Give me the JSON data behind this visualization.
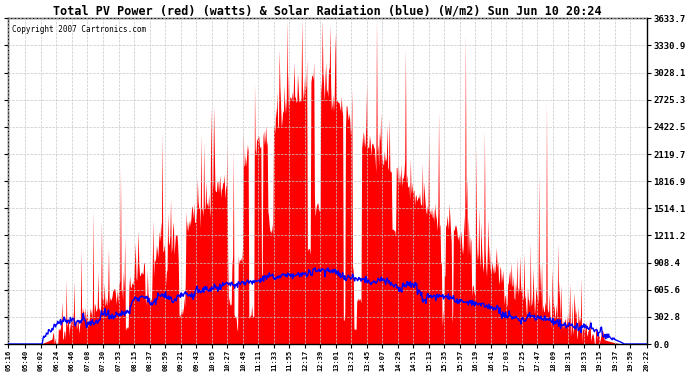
{
  "title": "Total PV Power (red) (watts) & Solar Radiation (blue) (W/m2) Sun Jun 10 20:24",
  "copyright": "Copyright 2007 Cartronics.com",
  "bg_color": "#ffffff",
  "plot_bg_color": "#ffffff",
  "grid_color": "#c8c8c8",
  "pv_color": "#ff0000",
  "solar_color": "#0000ff",
  "yticks": [
    0.0,
    302.8,
    605.6,
    908.4,
    1211.2,
    1514.1,
    1816.9,
    2119.7,
    2422.5,
    2725.3,
    3028.1,
    3330.9,
    3633.7
  ],
  "ymax": 3633.7,
  "ymin": 0.0,
  "xtick_labels": [
    "05:16",
    "05:40",
    "06:02",
    "06:24",
    "06:46",
    "07:08",
    "07:30",
    "07:53",
    "08:15",
    "08:37",
    "08:59",
    "09:21",
    "09:43",
    "10:05",
    "10:27",
    "10:49",
    "11:11",
    "11:33",
    "11:55",
    "12:17",
    "12:39",
    "13:01",
    "13:23",
    "13:45",
    "14:07",
    "14:29",
    "14:51",
    "15:13",
    "15:35",
    "15:57",
    "16:19",
    "16:41",
    "17:03",
    "17:25",
    "17:47",
    "18:09",
    "18:31",
    "18:53",
    "19:15",
    "19:37",
    "19:59",
    "20:22"
  ],
  "figsize": [
    6.9,
    3.75
  ],
  "dpi": 100
}
